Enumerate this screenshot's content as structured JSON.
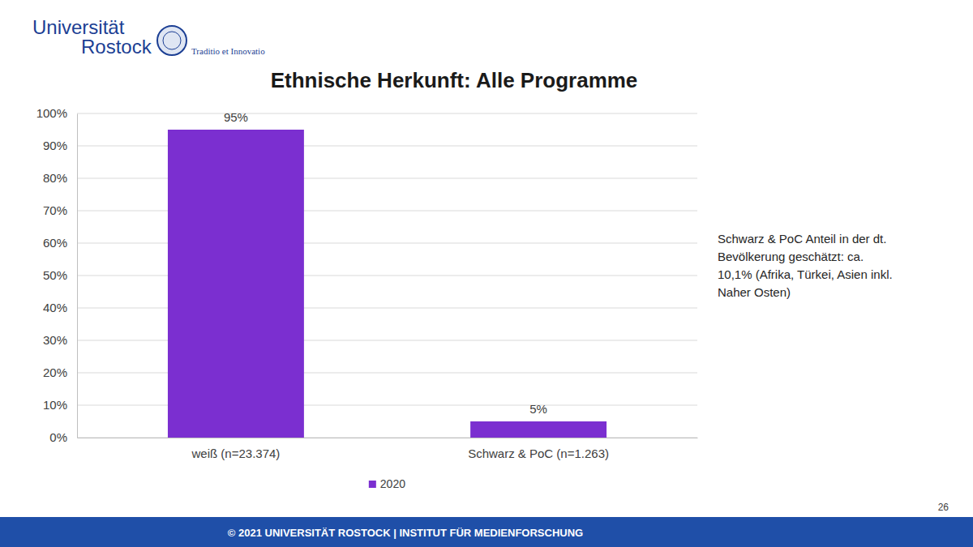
{
  "slide": {
    "logo": {
      "name": [
        "Universität",
        "Rostock"
      ],
      "motto": "Traditio et Innovatio"
    },
    "footer": "© 2021 UNIVERSITÄT ROSTOCK | INSTITUT FÜR MEDIENFORSCHUNG",
    "page": "26"
  },
  "chart_data": {
    "type": "bar",
    "title": "Ethnische Herkunft: Alle Programme",
    "categories": [
      "weiß (n=23.374)",
      "Schwarz & PoC (n=1.263)"
    ],
    "series": [
      {
        "name": "2020",
        "color": "#7b2fd0",
        "values": [
          95,
          5
        ],
        "value_labels": [
          "95%",
          "5%"
        ]
      }
    ],
    "ylim": [
      0,
      100
    ],
    "yticks": [
      {
        "value": 0,
        "label": "0%"
      },
      {
        "value": 10,
        "label": "10%"
      },
      {
        "value": 20,
        "label": "20%"
      },
      {
        "value": 30,
        "label": "30%"
      },
      {
        "value": 40,
        "label": "40%"
      },
      {
        "value": 50,
        "label": "50%"
      },
      {
        "value": 60,
        "label": "60%"
      },
      {
        "value": 70,
        "label": "70%"
      },
      {
        "value": 80,
        "label": "80%"
      },
      {
        "value": 90,
        "label": "90%"
      },
      {
        "value": 100,
        "label": "100%"
      }
    ],
    "grid": true,
    "legend": "bottom",
    "data_labels": true,
    "annotations": [
      "Schwarz & PoC Anteil in der dt. Bevölkerung geschätzt: ca. 10,1% (Afrika, Türkei, Asien inkl. Naher Osten)"
    ]
  }
}
